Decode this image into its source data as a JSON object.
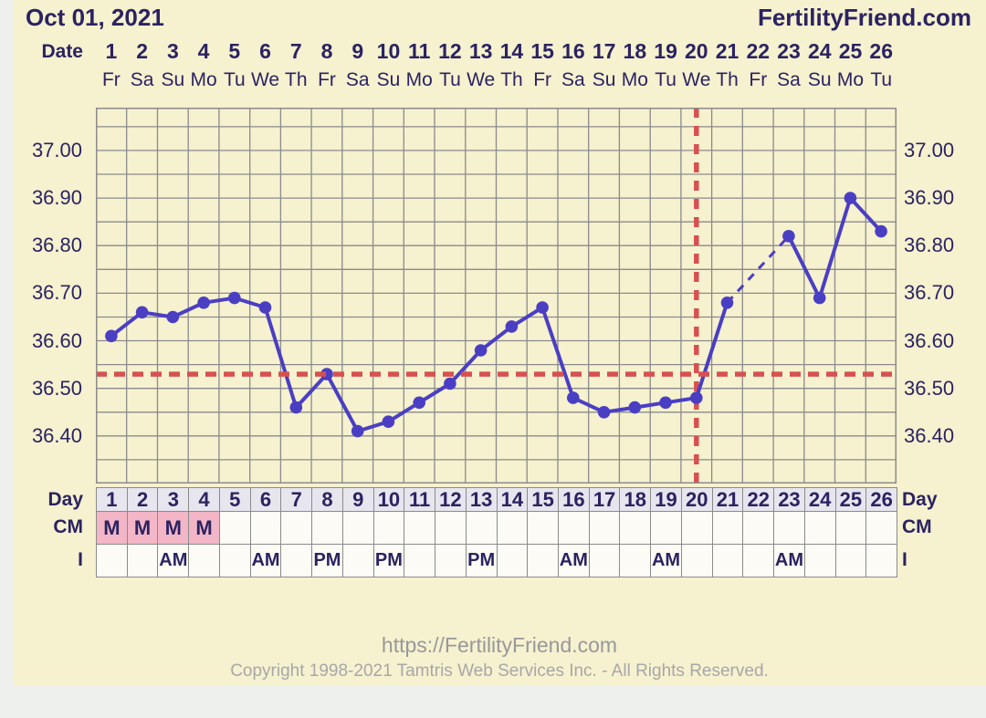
{
  "header": {
    "date": "Oct 01, 2021",
    "brand": "FertilityFriend.com",
    "date_label": "Date"
  },
  "chart_data": {
    "type": "line",
    "title": "Oct 01, 2021",
    "days": [
      1,
      2,
      3,
      4,
      5,
      6,
      7,
      8,
      9,
      10,
      11,
      12,
      13,
      14,
      15,
      16,
      17,
      18,
      19,
      20,
      21,
      22,
      23,
      24,
      25,
      26
    ],
    "weekdays": [
      "Fr",
      "Sa",
      "Su",
      "Mo",
      "Tu",
      "We",
      "Th",
      "Fr",
      "Sa",
      "Su",
      "Mo",
      "Tu",
      "We",
      "Th",
      "Fr",
      "Sa",
      "Su",
      "Mo",
      "Tu",
      "We",
      "Th",
      "Fr",
      "Sa",
      "Su",
      "Mo",
      "Tu"
    ],
    "series": [
      {
        "name": "basal-body-temperature",
        "values": [
          36.61,
          36.66,
          36.65,
          36.68,
          36.69,
          36.67,
          36.46,
          36.53,
          36.41,
          36.43,
          36.47,
          36.51,
          36.58,
          36.63,
          36.67,
          36.48,
          36.45,
          36.46,
          36.47,
          36.48,
          36.68,
          null,
          36.82,
          36.69,
          36.9,
          36.83
        ]
      }
    ],
    "missing_days": [
      22
    ],
    "ylim": [
      36.3,
      37.09
    ],
    "yticks": [
      36.4,
      36.5,
      36.6,
      36.7,
      36.8,
      36.9,
      37.0
    ],
    "grid_step": 0.05,
    "grid": "on",
    "coverline_value": 36.53,
    "ovulation_line_day": 20
  },
  "table": {
    "rows": [
      {
        "label": "Day",
        "values": [
          "1",
          "2",
          "3",
          "4",
          "5",
          "6",
          "7",
          "8",
          "9",
          "10",
          "11",
          "12",
          "13",
          "14",
          "15",
          "16",
          "17",
          "18",
          "19",
          "20",
          "21",
          "22",
          "23",
          "24",
          "25",
          "26"
        ]
      },
      {
        "label": "CM",
        "values": [
          "M",
          "M",
          "M",
          "M",
          "",
          "",
          "",
          "",
          "",
          "",
          "",
          "",
          "",
          "",
          "",
          "",
          "",
          "",
          "",
          "",
          "",
          "",
          "",
          "",
          "",
          ""
        ]
      },
      {
        "label": "I",
        "values": [
          "",
          "",
          "AM",
          "",
          "",
          "AM",
          "",
          "PM",
          "",
          "PM",
          "",
          "",
          "PM",
          "",
          "",
          "AM",
          "",
          "",
          "AM",
          "",
          "",
          "",
          "AM",
          "",
          "",
          ""
        ]
      }
    ]
  },
  "footer": {
    "url": "https://FertilityFriend.com",
    "copyright": "Copyright 1998-2021 Tamtris Web Services Inc. - All Rights Reserved."
  },
  "colors": {
    "panel_background": "#f6f1cf",
    "text_navy": "#2b2361",
    "grid_gray": "#8b8b8b",
    "line_purple": "#4a3fc3",
    "marker_red": "#d85050",
    "cm_pink": "#f3b6c7",
    "day_header_cell": "#e7e5ee",
    "table_cell": "#fcfbf5"
  }
}
